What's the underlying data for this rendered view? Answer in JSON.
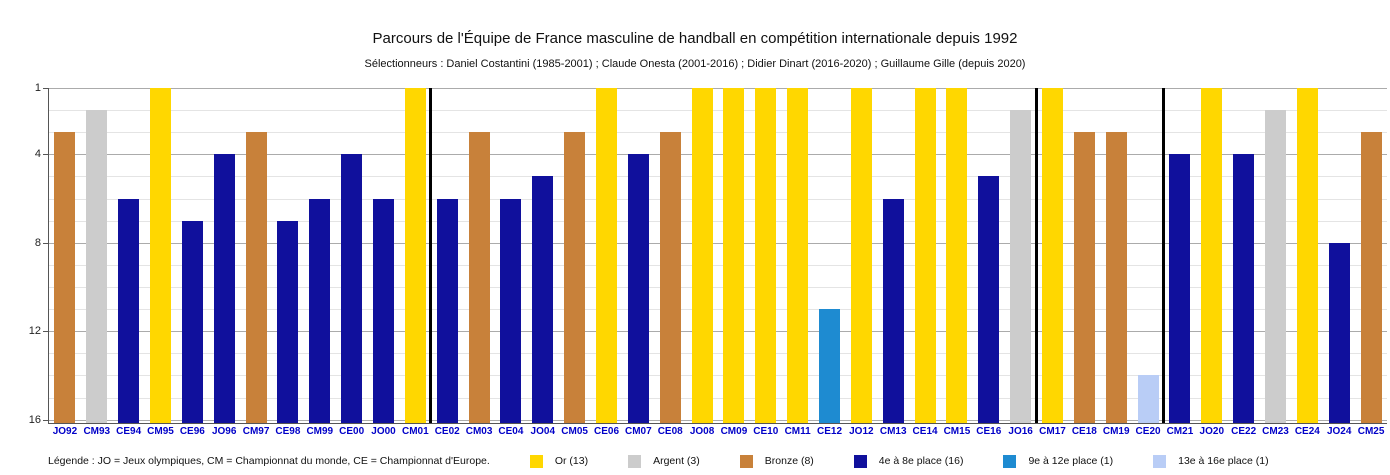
{
  "header": {
    "title": "Parcours de l'Équipe de France masculine de handball en compétition internationale depuis 1992",
    "subtitle": "Sélectionneurs : Daniel Costantini (1985-2001) ; Claude Onesta (2001-2016) ; Didier Dinart (2016-2020) ; Guillaume Gille (depuis 2020)"
  },
  "colors": {
    "gold": "#ffd700",
    "silver": "#cccccc",
    "bronze": "#c8813a",
    "navy": "#10109c",
    "blue_mid": "#1e8bd1",
    "blue_pale": "#b9cdf6",
    "xlabel_blue": "#0000c8",
    "grid_minor": "#e4e4e4",
    "grid_major": "#ababab",
    "separator_black": "#000000"
  },
  "axis": {
    "y_ticks": [
      1,
      4,
      8,
      12,
      16
    ]
  },
  "chart_data": {
    "type": "bar",
    "title": "Parcours de l'Équipe de France masculine de handball en compétition internationale depuis 1992",
    "subtitle": "Sélectionneurs : Daniel Costantini (1985-2001) ; Claude Onesta (2001-2016) ; Didier Dinart (2016-2020) ; Guillaume Gille (depuis 2020)",
    "categories": [
      "JO92",
      "CM93",
      "CE94",
      "CM95",
      "CE96",
      "JO96",
      "CM97",
      "CE98",
      "CM99",
      "CE00",
      "JO00",
      "CM01",
      "CE02",
      "CM03",
      "CE04",
      "JO04",
      "CM05",
      "CE06",
      "CM07",
      "CE08",
      "JO08",
      "CM09",
      "CE10",
      "CM11",
      "CE12",
      "JO12",
      "CM13",
      "CE14",
      "CM15",
      "CE16",
      "JO16",
      "CM17",
      "CE18",
      "CM19",
      "CE20",
      "CM21",
      "JO20",
      "CE22",
      "CM23",
      "CE24",
      "JO24",
      "CM25"
    ],
    "values": [
      3,
      2,
      6,
      1,
      7,
      4,
      3,
      7,
      6,
      4,
      6,
      1,
      6,
      3,
      6,
      5,
      3,
      1,
      4,
      3,
      1,
      1,
      1,
      1,
      11,
      1,
      6,
      1,
      1,
      5,
      2,
      1,
      3,
      3,
      14,
      4,
      1,
      4,
      2,
      1,
      8,
      3
    ],
    "tiers": [
      "bronze",
      "silver",
      "navy",
      "gold",
      "navy",
      "navy",
      "bronze",
      "navy",
      "navy",
      "navy",
      "navy",
      "gold",
      "navy",
      "bronze",
      "navy",
      "navy",
      "bronze",
      "gold",
      "navy",
      "bronze",
      "gold",
      "gold",
      "gold",
      "gold",
      "blue_mid",
      "gold",
      "navy",
      "gold",
      "gold",
      "navy",
      "silver",
      "gold",
      "bronze",
      "bronze",
      "blue_pale",
      "navy",
      "gold",
      "navy",
      "silver",
      "gold",
      "navy",
      "bronze"
    ],
    "y_inverted": true,
    "ylim": [
      1,
      16
    ],
    "y_tick_labels": [
      "1",
      "4",
      "8",
      "12",
      "16"
    ],
    "grid": true,
    "legend_position": "bottom",
    "era_separators_after_index": [
      11,
      30,
      34
    ]
  },
  "legend": {
    "prefix": "Légende : JO = Jeux olympiques, CM = Championnat du monde, CE = Championnat d'Europe.",
    "items": [
      {
        "label": "Or (13)",
        "color": "gold"
      },
      {
        "label": "Argent (3)",
        "color": "silver"
      },
      {
        "label": "Bronze (8)",
        "color": "bronze"
      },
      {
        "label": "4e à 8e place (16)",
        "color": "navy"
      },
      {
        "label": "9e à 12e place (1)",
        "color": "blue_mid"
      },
      {
        "label": "13e à 16e place (1)",
        "color": "blue_pale"
      }
    ]
  }
}
